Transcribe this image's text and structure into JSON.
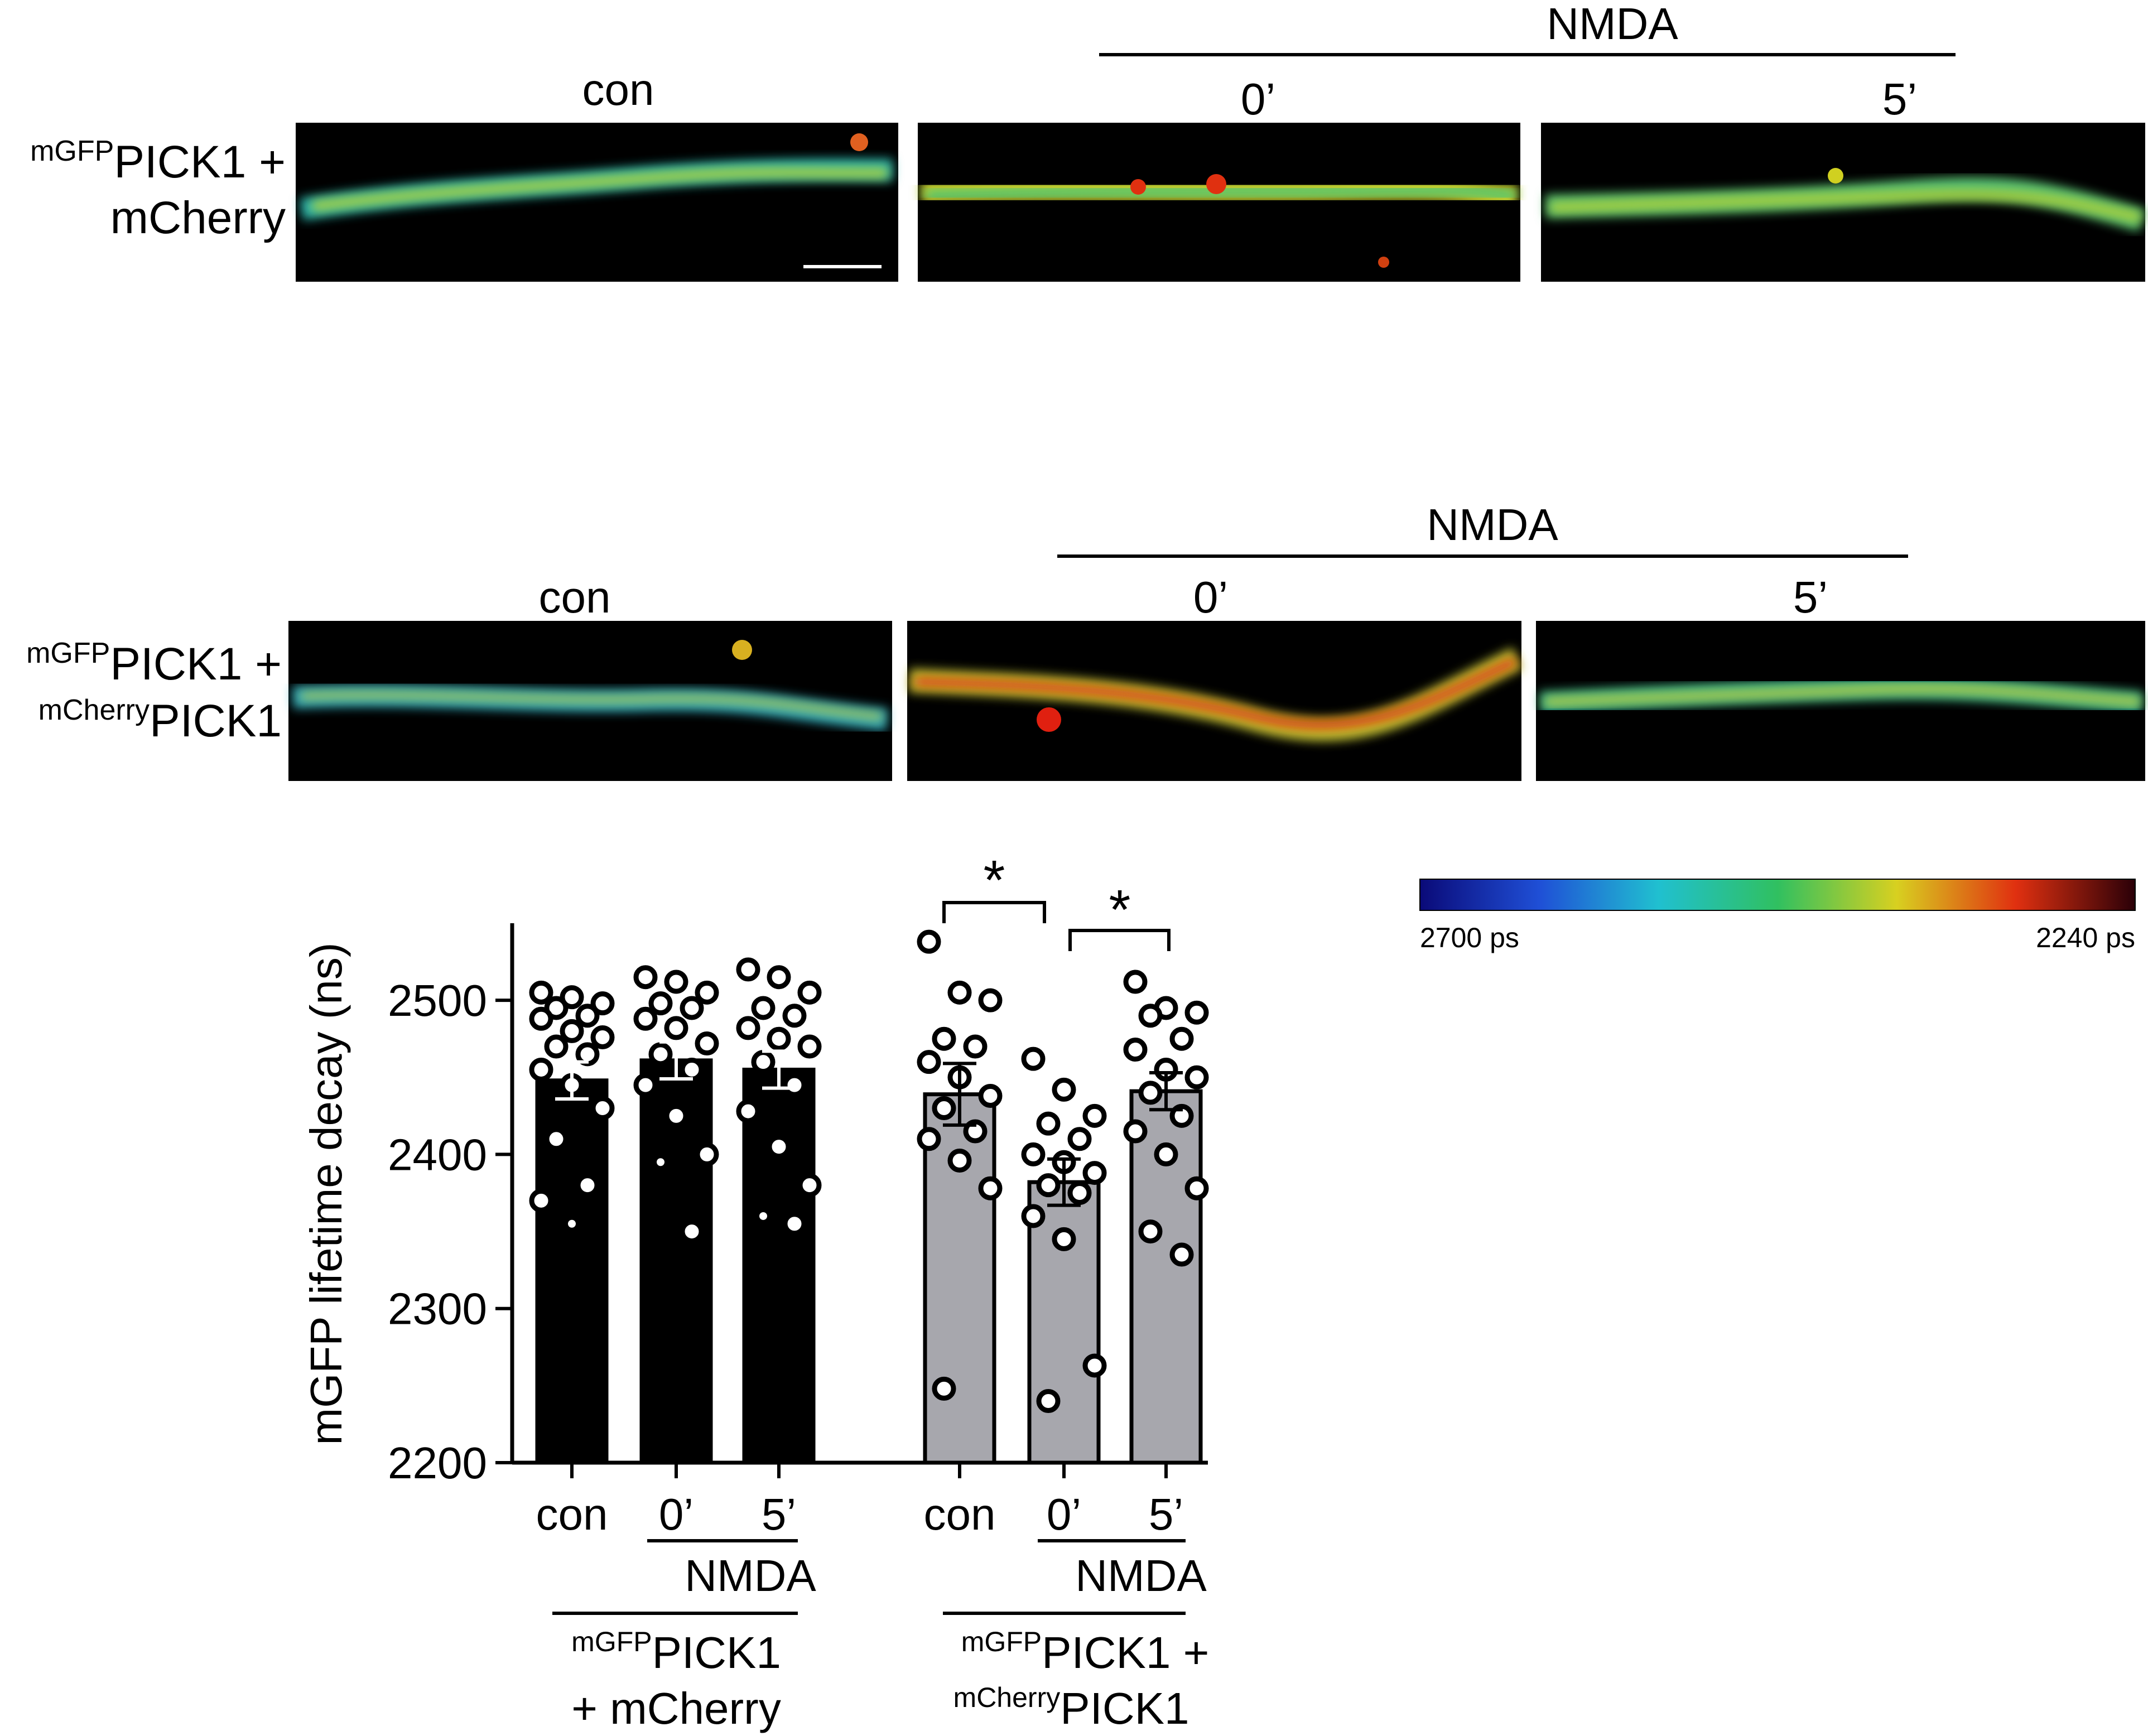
{
  "panels": {
    "top": {
      "row_label": {
        "sup": "mGFP",
        "line1_main": "PICK1 +",
        "line2": "mCherry"
      },
      "columns": [
        "con",
        "0’",
        "5’"
      ],
      "treatment": "NMDA"
    },
    "middle": {
      "row_label": {
        "sup1": "mGFP",
        "line1_main": "PICK1 +",
        "sup2": "mCherry",
        "line2_main": "PICK1"
      },
      "columns": [
        "con",
        "0’",
        "5’"
      ],
      "treatment": "NMDA"
    }
  },
  "colorbar": {
    "min_label": "2700 ps",
    "max_label": "2240 ps",
    "stops": [
      "#0a0a78",
      "#1f4fd6",
      "#20c0d0",
      "#30c060",
      "#d8d020",
      "#e03010",
      "#2a0008"
    ]
  },
  "significance": [
    "*",
    "*"
  ],
  "colors": {
    "group1_bar": "#000000",
    "group2_bar": "#a7a7ad"
  },
  "chart_data": {
    "type": "bar",
    "ylabel": "mGFP lifetime decay (ns)",
    "ylim": [
      2200,
      2550
    ],
    "yticks": [
      2200,
      2300,
      2400,
      2500
    ],
    "categories": [
      "con",
      "0’",
      "5’",
      "con",
      "0’",
      "5’"
    ],
    "groups": [
      {
        "sup": "mGFP",
        "line1_main": "PICK1",
        "line2": "+ mCherry",
        "treatment": "NMDA"
      },
      {
        "sup1": "mGFP",
        "line1_main": "PICK1 +",
        "sup2": "mCherry",
        "line2_main": "PICK1",
        "treatment": "NMDA"
      }
    ],
    "series": [
      {
        "values": [
          2448,
          2461,
          2455,
          2439,
          2382,
          2441
        ],
        "sem": [
          12,
          12,
          12,
          20,
          15,
          12
        ]
      }
    ],
    "points": [
      [
        2505,
        2502,
        2498,
        2495,
        2490,
        2488,
        2480,
        2476,
        2470,
        2465,
        2455,
        2445,
        2430,
        2410,
        2380,
        2370,
        2355
      ],
      [
        2515,
        2512,
        2505,
        2498,
        2495,
        2488,
        2482,
        2472,
        2465,
        2455,
        2445,
        2425,
        2400,
        2395,
        2350
      ],
      [
        2520,
        2515,
        2505,
        2495,
        2490,
        2482,
        2475,
        2470,
        2460,
        2445,
        2428,
        2405,
        2380,
        2360,
        2355
      ],
      [
        2538,
        2505,
        2500,
        2475,
        2470,
        2460,
        2450,
        2438,
        2430,
        2415,
        2410,
        2396,
        2378,
        2248
      ],
      [
        2462,
        2442,
        2425,
        2420,
        2410,
        2400,
        2395,
        2388,
        2380,
        2375,
        2360,
        2345,
        2263,
        2240
      ],
      [
        2512,
        2495,
        2492,
        2490,
        2475,
        2468,
        2455,
        2450,
        2440,
        2425,
        2415,
        2400,
        2378,
        2350,
        2335
      ]
    ]
  }
}
